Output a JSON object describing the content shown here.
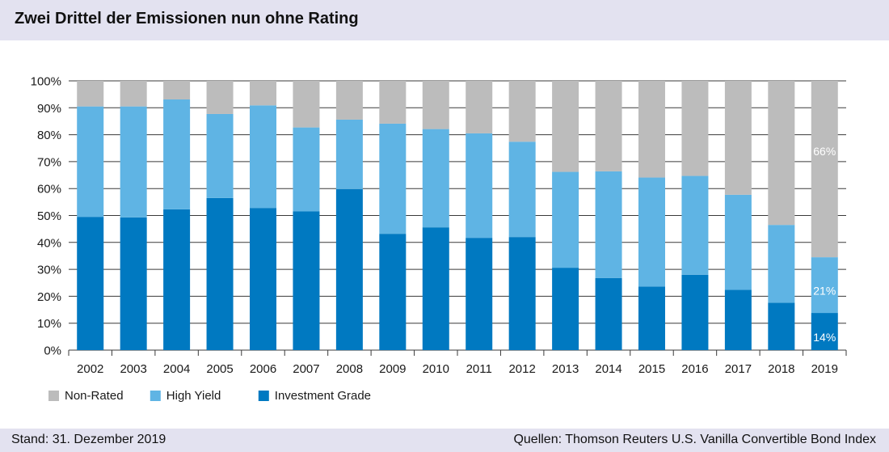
{
  "title": "Zwei Drittel der Emissionen nun ohne Rating",
  "footer": {
    "left": "Stand: 31. Dezember 2019",
    "right": "Quellen: Thomson Reuters U.S. Vanilla Convertible Bond Index"
  },
  "colors": {
    "non_rated": "#bcbcbc",
    "high_yield": "#5fb4e4",
    "investment_grade": "#0079c1",
    "header_bg": "#e3e2f0"
  },
  "chart_data": {
    "type": "bar",
    "stacked": true,
    "categories": [
      "2002",
      "2003",
      "2004",
      "2005",
      "2006",
      "2007",
      "2008",
      "2009",
      "2010",
      "2011",
      "2012",
      "2013",
      "2014",
      "2015",
      "2016",
      "2017",
      "2018",
      "2019"
    ],
    "series": [
      {
        "name": "Investment Grade",
        "values": [
          49.5,
          49.3,
          52.3,
          56.5,
          52.8,
          51.5,
          59.8,
          43.2,
          45.6,
          41.7,
          42.0,
          30.6,
          26.8,
          23.6,
          28.0,
          22.4,
          17.6,
          13.8
        ]
      },
      {
        "name": "High Yield",
        "values": [
          41.0,
          41.2,
          40.8,
          31.2,
          38.1,
          31.2,
          25.8,
          40.9,
          36.5,
          38.8,
          35.4,
          35.6,
          39.6,
          40.5,
          36.7,
          35.3,
          28.9,
          20.7
        ]
      },
      {
        "name": "Non-Rated",
        "values": [
          9.5,
          9.5,
          6.9,
          12.3,
          9.1,
          17.3,
          14.4,
          15.9,
          17.9,
          19.5,
          22.6,
          33.8,
          33.6,
          35.9,
          35.3,
          42.3,
          53.5,
          65.5
        ]
      }
    ],
    "data_labels": [
      {
        "category": "2019",
        "series": "Non-Rated",
        "text": "66%"
      },
      {
        "category": "2019",
        "series": "High Yield",
        "text": "21%"
      },
      {
        "category": "2019",
        "series": "Investment Grade",
        "text": "14%"
      }
    ],
    "ylim": [
      0,
      100
    ],
    "yticks": [
      "0%",
      "10%",
      "20%",
      "30%",
      "40%",
      "50%",
      "60%",
      "70%",
      "80%",
      "90%",
      "100%"
    ],
    "legend": [
      "Non-Rated",
      "High Yield",
      "Investment Grade"
    ],
    "legend_position": "bottom-left",
    "grid": true
  }
}
